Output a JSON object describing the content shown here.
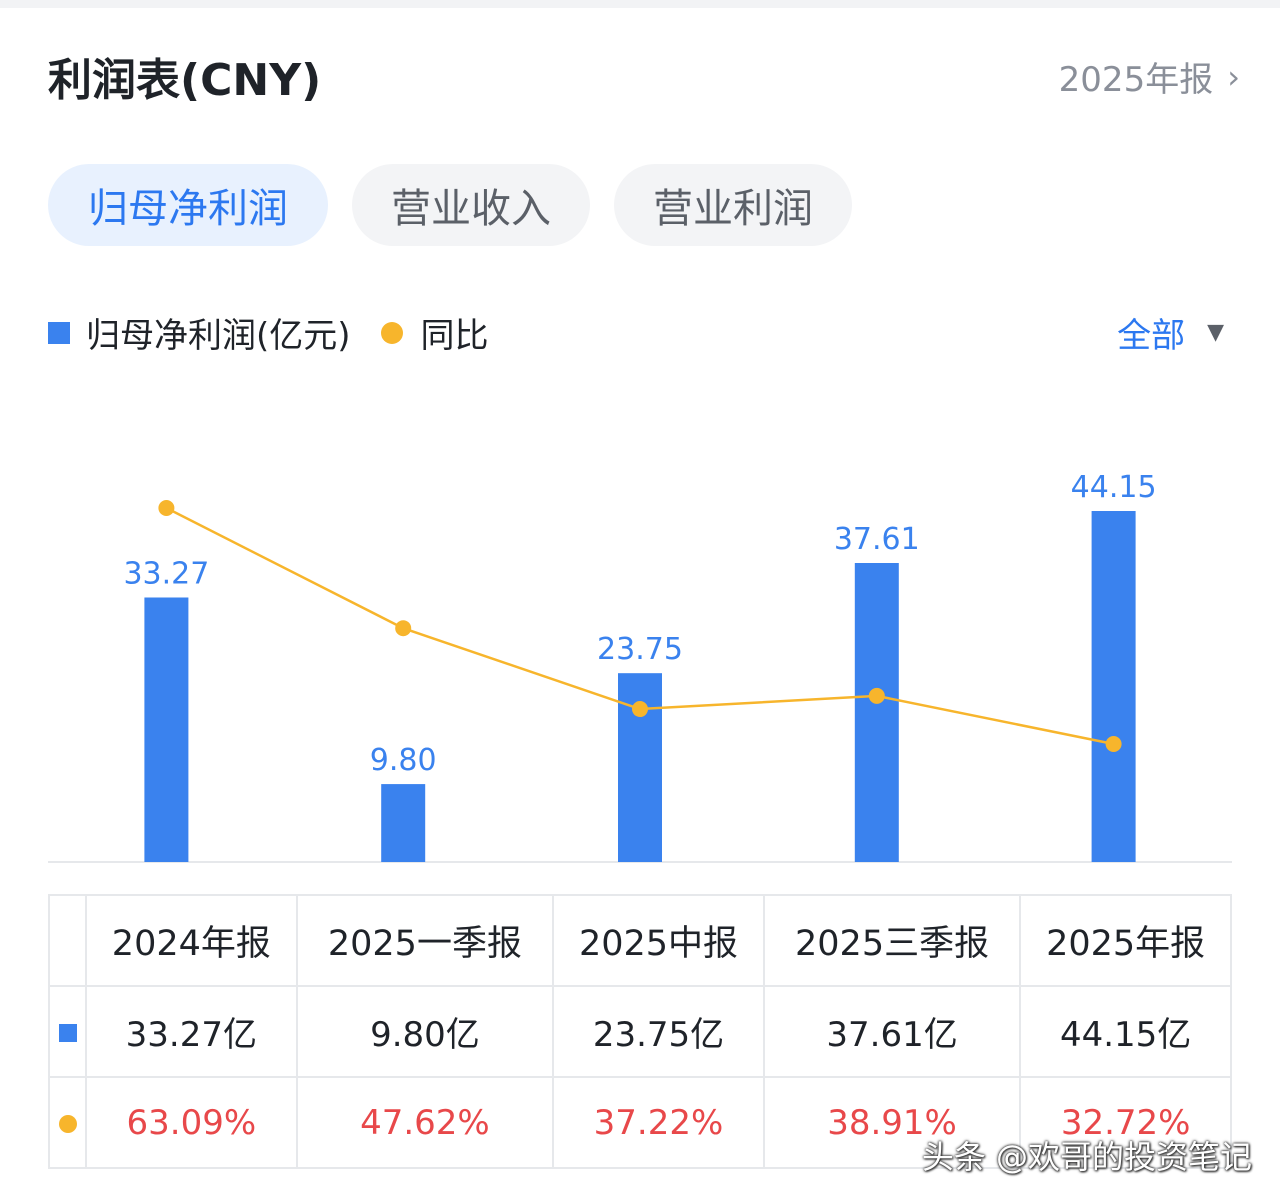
{
  "header": {
    "title": "利润表(CNY)",
    "period_link": "2025年报",
    "chevron_icon": "chevron-right-icon"
  },
  "tabs": [
    {
      "label": "归母净利润",
      "active": true
    },
    {
      "label": "营业收入",
      "active": false
    },
    {
      "label": "营业利润",
      "active": false
    }
  ],
  "legend": {
    "bar_label": "归母净利润(亿元)",
    "line_label": "同比"
  },
  "filter": {
    "label": "全部",
    "icon": "triangle-down-icon"
  },
  "colors": {
    "bar": "#3a82ee",
    "line": "#f7b52c",
    "label": "#3a82ee",
    "negative_pct": "#e8484a",
    "accent": "#2c78f0"
  },
  "chart_data": {
    "type": "bar",
    "categories": [
      "2024年报",
      "2025一季报",
      "2025中报",
      "2025三季报",
      "2025年报"
    ],
    "series": [
      {
        "name": "归母净利润(亿元)",
        "type": "bar",
        "values": [
          33.27,
          9.8,
          23.75,
          37.61,
          44.15
        ],
        "labels": [
          "33.27",
          "9.80",
          "23.75",
          "37.61",
          "44.15"
        ]
      },
      {
        "name": "同比",
        "type": "line",
        "values": [
          63.09,
          47.62,
          37.22,
          38.91,
          32.72
        ]
      }
    ]
  },
  "table": {
    "headers": [
      "2024年报",
      "2025一季报",
      "2025中报",
      "2025三季报",
      "2025年报"
    ],
    "values": [
      "33.27亿",
      "9.80亿",
      "23.75亿",
      "37.61亿",
      "44.15亿"
    ],
    "yoy": [
      "63.09%",
      "47.62%",
      "37.22%",
      "38.91%",
      "32.72%"
    ]
  },
  "watermark": "头条 @欢哥的投资笔记"
}
